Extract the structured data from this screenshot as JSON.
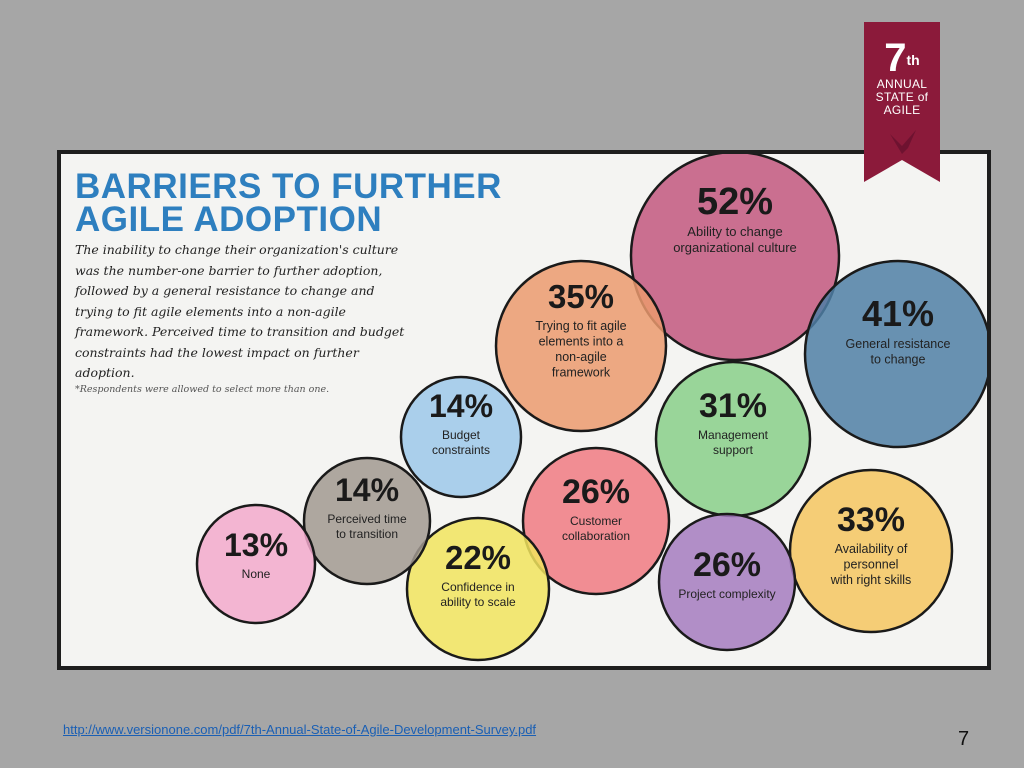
{
  "slide": {
    "title_line1": "BARRIERS TO FURTHER",
    "title_line2": "AGILE ADOPTION",
    "description": "The inability to change their organization's culture was the number-one barrier to further adoption, followed by a general resistance to change and trying to fit agile elements into a non-agile framework. Perceived time to transition and budget constraints had the lowest impact on further adoption.",
    "footnote": "*Respondents were allowed to select more than one.",
    "source_url": "http://www.versionone.com/pdf/7th-Annual-State-of-Agile-Development-Survey.pdf",
    "page_number": "7"
  },
  "badge": {
    "number": "7",
    "suffix": "th",
    "line1": "ANNUAL",
    "line2": "STATE of",
    "line3": "AGILE",
    "color": "#8b1a3a"
  },
  "colors": {
    "title": "#2e7fbf",
    "background": "#a6a6a6",
    "panel": "#f4f4f2"
  },
  "chart_data": {
    "type": "bubble",
    "unit": "%",
    "items": [
      {
        "label": [
          "Ability to change",
          "organizational culture"
        ],
        "value": 52,
        "color": "#c2577f"
      },
      {
        "label": [
          "General resistance",
          "to change"
        ],
        "value": 41,
        "color": "#4f7fa6"
      },
      {
        "label": [
          "Trying to fit agile",
          "elements into a",
          "non-agile",
          "framework"
        ],
        "value": 35,
        "color": "#eb9a6e"
      },
      {
        "label": [
          "Availability of",
          "personnel",
          "with right skills"
        ],
        "value": 33,
        "color": "#f4c660"
      },
      {
        "label": [
          "Management",
          "support"
        ],
        "value": 31,
        "color": "#88cf89"
      },
      {
        "label": [
          "Customer",
          "collaboration"
        ],
        "value": 26,
        "color": "#f07a82"
      },
      {
        "label": [
          "Project complexity"
        ],
        "value": 26,
        "color": "#a57bc0"
      },
      {
        "label": [
          "Confidence in",
          "ability to scale"
        ],
        "value": 22,
        "color": "#f1e45e"
      },
      {
        "label": [
          "Budget",
          "constraints"
        ],
        "value": 14,
        "color": "#9cc8ea"
      },
      {
        "label": [
          "Perceived time",
          "to transition"
        ],
        "value": 14,
        "color": "#a19990"
      },
      {
        "label": [
          "None"
        ],
        "value": 13,
        "color": "#f2a9cc"
      }
    ]
  }
}
